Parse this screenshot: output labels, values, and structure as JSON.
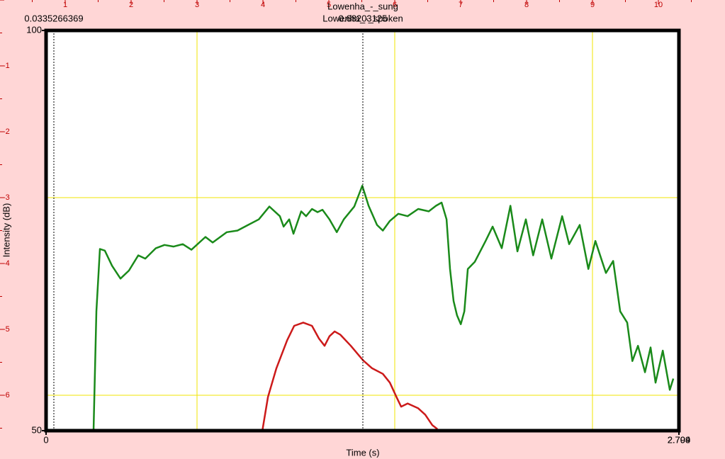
{
  "chart_data": {
    "type": "line",
    "xlabel": "Time (s)",
    "ylabel": "Intensity (dB)",
    "xlim": [
      0,
      2.704
    ],
    "xticks": [
      0,
      2.704
    ],
    "x_end_label_2": "2.799",
    "ylim": [
      50,
      100
    ],
    "yticks": [
      50,
      100
    ],
    "cursor_labels": [
      "0.0335266369",
      "0.68203125"
    ],
    "ruler": {
      "top": [
        "1",
        "2",
        "3",
        "4",
        "5",
        "6",
        "7",
        "8",
        "9",
        "10"
      ],
      "left": [
        "-1",
        "-2",
        "-3",
        "-4",
        "-5",
        "-6"
      ]
    },
    "series": [
      {
        "name": "Lowenha_-_sung",
        "color": "#1a8a1a",
        "x": [
          0.203,
          0.215,
          0.23,
          0.251,
          0.282,
          0.318,
          0.354,
          0.394,
          0.424,
          0.469,
          0.506,
          0.545,
          0.584,
          0.621,
          0.681,
          0.712,
          0.772,
          0.818,
          0.863,
          0.909,
          0.954,
          0.999,
          1.015,
          1.039,
          1.057,
          1.09,
          1.111,
          1.136,
          1.16,
          1.181,
          1.211,
          1.242,
          1.272,
          1.317,
          1.351,
          1.378,
          1.414,
          1.439,
          1.469,
          1.505,
          1.545,
          1.59,
          1.635,
          1.666,
          1.69,
          1.711,
          1.726,
          1.741,
          1.756,
          1.772,
          1.787,
          1.802,
          1.832,
          1.878,
          1.908,
          1.947,
          1.984,
          2.014,
          2.05,
          2.081,
          2.12,
          2.159,
          2.205,
          2.235,
          2.28,
          2.317,
          2.347,
          2.392,
          2.423,
          2.453,
          2.483,
          2.505,
          2.529,
          2.559,
          2.583,
          2.604,
          2.635,
          2.665,
          2.68
        ],
        "values": [
          50.0,
          64.9,
          72.7,
          72.5,
          70.6,
          69.0,
          70.0,
          71.9,
          71.5,
          72.8,
          73.2,
          73.0,
          73.3,
          72.6,
          74.2,
          73.5,
          74.8,
          75.0,
          75.7,
          76.4,
          78.0,
          76.8,
          75.5,
          76.4,
          74.6,
          77.4,
          76.8,
          77.7,
          77.3,
          77.6,
          76.4,
          74.8,
          76.4,
          78.0,
          80.6,
          78.1,
          75.7,
          75.0,
          76.2,
          77.1,
          76.8,
          77.7,
          77.4,
          78.1,
          78.5,
          76.4,
          70.2,
          66.2,
          64.4,
          63.3,
          64.9,
          70.2,
          71.1,
          73.7,
          75.5,
          72.8,
          78.1,
          72.4,
          76.4,
          71.9,
          76.4,
          71.5,
          76.8,
          73.3,
          75.7,
          70.2,
          73.7,
          69.7,
          71.2,
          64.9,
          63.5,
          58.7,
          60.6,
          57.3,
          60.4,
          56.0,
          60.0,
          55.1,
          56.5
        ]
      },
      {
        "name": "Lowenha_-_spoken",
        "color": "#cc1a1a",
        "x": [
          0.924,
          0.948,
          0.984,
          1.03,
          1.06,
          1.099,
          1.136,
          1.166,
          1.19,
          1.211,
          1.233,
          1.257,
          1.302,
          1.354,
          1.393,
          1.439,
          1.469,
          1.499,
          1.517,
          1.545,
          1.59,
          1.62,
          1.65,
          1.672
        ],
        "values": [
          50.0,
          54.2,
          57.8,
          61.3,
          63.1,
          63.5,
          63.1,
          61.5,
          60.6,
          61.8,
          62.4,
          62.0,
          60.6,
          58.8,
          57.8,
          57.1,
          56.0,
          54.1,
          53.0,
          53.4,
          52.8,
          52.0,
          50.7,
          50.2
        ]
      }
    ]
  }
}
